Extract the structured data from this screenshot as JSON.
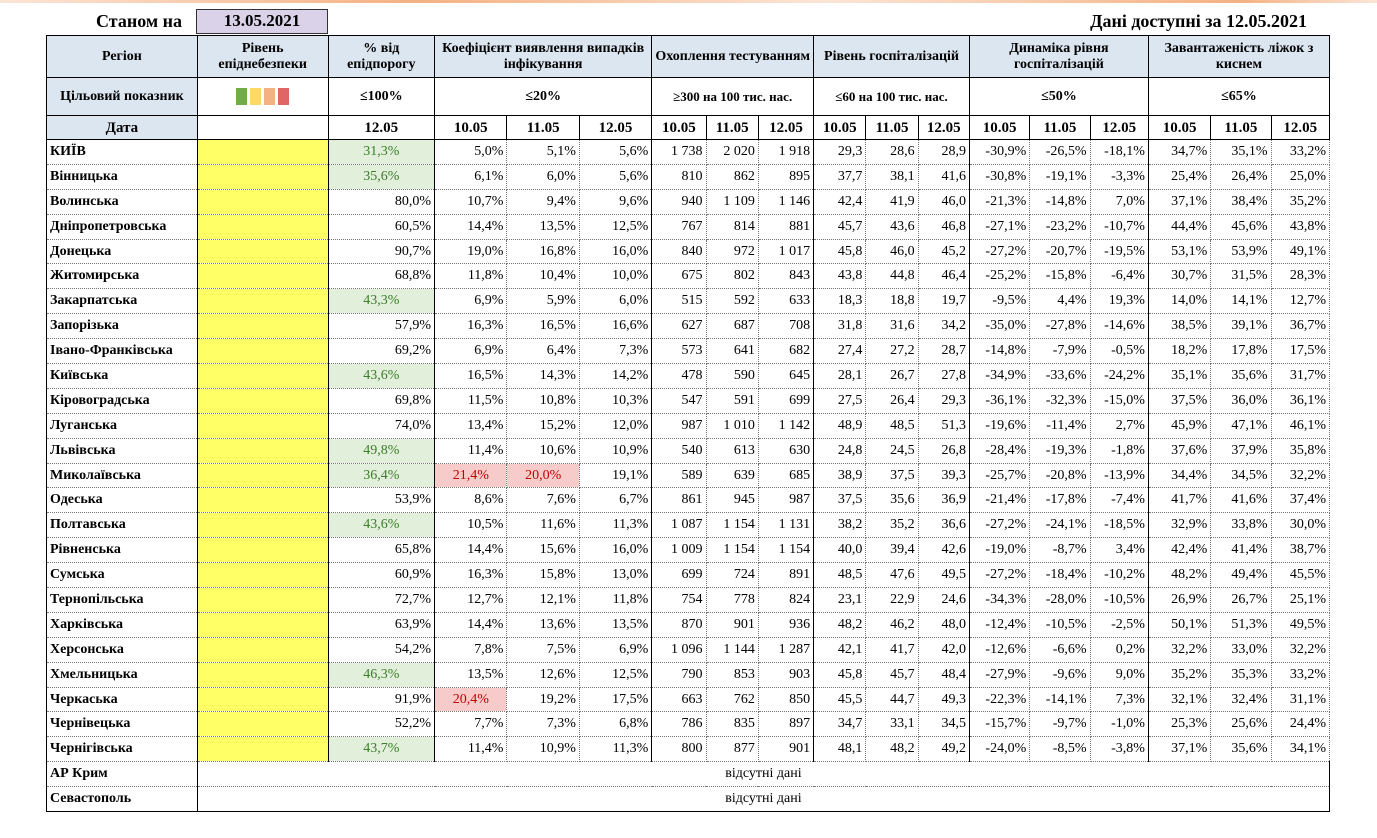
{
  "header": {
    "as_of_label": "Станом на",
    "as_of_date": "13.05.2021",
    "available_label": "Дані доступні за 12.05.2021"
  },
  "columns": {
    "region": "Регіон",
    "level": "Рівень епіднебезпеки",
    "threshold": "% від епідпорогу",
    "detection": "Коефіцієнт виявлення випадків інфікування",
    "testing": "Охоплення тестуванням",
    "hosp": "Рівень госпіталізацій",
    "hosp_dyn": "Динаміка рівня госпіталізацій",
    "oxygen": "Завантаженість ліжок з киснем"
  },
  "target": {
    "label": "Цільовий показник",
    "legend_colors": [
      "#70ad47",
      "#ffd966",
      "#f4b183",
      "#e06666"
    ],
    "threshold": "≤100%",
    "detection": "≤20%",
    "testing": "≥300 на 100 тис. нас.",
    "hosp": "≤60 на 100 тис. нас.",
    "hosp_dyn": "≤50%",
    "oxygen": "≤65%"
  },
  "dates": {
    "label": "Дата",
    "single": "12.05",
    "triple": [
      "10.05",
      "11.05",
      "12.05"
    ]
  },
  "colors": {
    "level_yellow": "#ffff66",
    "good_green": "#e2efda",
    "bad_red": "#f8cbcb"
  },
  "rows": [
    {
      "name": "КИЇВ",
      "thr": "31,3%",
      "thr_g": true,
      "det": [
        "5,0%",
        "5,1%",
        "5,6%"
      ],
      "tst": [
        "1 738",
        "2 020",
        "1 918"
      ],
      "hos": [
        "29,3",
        "28,6",
        "28,9"
      ],
      "dyn": [
        "-30,9%",
        "-26,5%",
        "-18,1%"
      ],
      "oxy": [
        "34,7%",
        "35,1%",
        "33,2%"
      ]
    },
    {
      "name": "Вінницька",
      "thr": "35,6%",
      "thr_g": true,
      "det": [
        "6,1%",
        "6,0%",
        "5,6%"
      ],
      "tst": [
        "810",
        "862",
        "895"
      ],
      "hos": [
        "37,7",
        "38,1",
        "41,6"
      ],
      "dyn": [
        "-30,8%",
        "-19,1%",
        "-3,3%"
      ],
      "oxy": [
        "25,4%",
        "26,4%",
        "25,0%"
      ]
    },
    {
      "name": "Волинська",
      "thr": "80,0%",
      "det": [
        "10,7%",
        "9,4%",
        "9,6%"
      ],
      "tst": [
        "940",
        "1 109",
        "1 146"
      ],
      "hos": [
        "42,4",
        "41,9",
        "46,0"
      ],
      "dyn": [
        "-21,3%",
        "-14,8%",
        "7,0%"
      ],
      "oxy": [
        "37,1%",
        "38,4%",
        "35,2%"
      ]
    },
    {
      "name": "Дніпропетровська",
      "thr": "60,5%",
      "det": [
        "14,4%",
        "13,5%",
        "12,5%"
      ],
      "tst": [
        "767",
        "814",
        "881"
      ],
      "hos": [
        "45,7",
        "43,6",
        "46,8"
      ],
      "dyn": [
        "-27,1%",
        "-23,2%",
        "-10,7%"
      ],
      "oxy": [
        "44,4%",
        "45,6%",
        "43,8%"
      ]
    },
    {
      "name": "Донецька",
      "thr": "90,7%",
      "det": [
        "19,0%",
        "16,8%",
        "16,0%"
      ],
      "tst": [
        "840",
        "972",
        "1 017"
      ],
      "hos": [
        "45,8",
        "46,0",
        "45,2"
      ],
      "dyn": [
        "-27,2%",
        "-20,7%",
        "-19,5%"
      ],
      "oxy": [
        "53,1%",
        "53,9%",
        "49,1%"
      ]
    },
    {
      "name": "Житомирська",
      "thr": "68,8%",
      "det": [
        "11,8%",
        "10,4%",
        "10,0%"
      ],
      "tst": [
        "675",
        "802",
        "843"
      ],
      "hos": [
        "43,8",
        "44,8",
        "46,4"
      ],
      "dyn": [
        "-25,2%",
        "-15,8%",
        "-6,4%"
      ],
      "oxy": [
        "30,7%",
        "31,5%",
        "28,3%"
      ]
    },
    {
      "name": "Закарпатська",
      "thr": "43,3%",
      "thr_g": true,
      "det": [
        "6,9%",
        "5,9%",
        "6,0%"
      ],
      "tst": [
        "515",
        "592",
        "633"
      ],
      "hos": [
        "18,3",
        "18,8",
        "19,7"
      ],
      "dyn": [
        "-9,5%",
        "4,4%",
        "19,3%"
      ],
      "oxy": [
        "14,0%",
        "14,1%",
        "12,7%"
      ]
    },
    {
      "name": "Запорізька",
      "thr": "57,9%",
      "det": [
        "16,3%",
        "16,5%",
        "16,6%"
      ],
      "tst": [
        "627",
        "687",
        "708"
      ],
      "hos": [
        "31,8",
        "31,6",
        "34,2"
      ],
      "dyn": [
        "-35,0%",
        "-27,8%",
        "-14,6%"
      ],
      "oxy": [
        "38,5%",
        "39,1%",
        "36,7%"
      ]
    },
    {
      "name": "Івано-Франківська",
      "thr": "69,2%",
      "det": [
        "6,9%",
        "6,4%",
        "7,3%"
      ],
      "tst": [
        "573",
        "641",
        "682"
      ],
      "hos": [
        "27,4",
        "27,2",
        "28,7"
      ],
      "dyn": [
        "-14,8%",
        "-7,9%",
        "-0,5%"
      ],
      "oxy": [
        "18,2%",
        "17,8%",
        "17,5%"
      ]
    },
    {
      "name": "Київська",
      "thr": "43,6%",
      "thr_g": true,
      "det": [
        "16,5%",
        "14,3%",
        "14,2%"
      ],
      "tst": [
        "478",
        "590",
        "645"
      ],
      "hos": [
        "28,1",
        "26,7",
        "27,8"
      ],
      "dyn": [
        "-34,9%",
        "-33,6%",
        "-24,2%"
      ],
      "oxy": [
        "35,1%",
        "35,6%",
        "31,7%"
      ]
    },
    {
      "name": "Кіровоградська",
      "thr": "69,8%",
      "det": [
        "11,5%",
        "10,8%",
        "10,3%"
      ],
      "tst": [
        "547",
        "591",
        "699"
      ],
      "hos": [
        "27,5",
        "26,4",
        "29,3"
      ],
      "dyn": [
        "-36,1%",
        "-32,3%",
        "-15,0%"
      ],
      "oxy": [
        "37,5%",
        "36,0%",
        "36,1%"
      ]
    },
    {
      "name": "Луганська",
      "thr": "74,0%",
      "det": [
        "13,4%",
        "15,2%",
        "12,0%"
      ],
      "tst": [
        "987",
        "1 010",
        "1 142"
      ],
      "hos": [
        "48,9",
        "48,5",
        "51,3"
      ],
      "dyn": [
        "-19,6%",
        "-11,4%",
        "2,7%"
      ],
      "oxy": [
        "45,9%",
        "47,1%",
        "46,1%"
      ]
    },
    {
      "name": "Львівська",
      "thr": "49,8%",
      "thr_g": true,
      "det": [
        "11,4%",
        "10,6%",
        "10,9%"
      ],
      "tst": [
        "540",
        "613",
        "630"
      ],
      "hos": [
        "24,8",
        "24,5",
        "26,8"
      ],
      "dyn": [
        "-28,4%",
        "-19,3%",
        "-1,8%"
      ],
      "oxy": [
        "37,6%",
        "37,9%",
        "35,8%"
      ]
    },
    {
      "name": "Миколаївська",
      "thr": "36,4%",
      "thr_g": true,
      "det": [
        "21,4%",
        "20,0%",
        "19,1%"
      ],
      "det_r": [
        true,
        true,
        false
      ],
      "tst": [
        "589",
        "639",
        "685"
      ],
      "hos": [
        "38,9",
        "37,5",
        "39,3"
      ],
      "dyn": [
        "-25,7%",
        "-20,8%",
        "-13,9%"
      ],
      "oxy": [
        "34,4%",
        "34,5%",
        "32,2%"
      ]
    },
    {
      "name": "Одеська",
      "thr": "53,9%",
      "det": [
        "8,6%",
        "7,6%",
        "6,7%"
      ],
      "tst": [
        "861",
        "945",
        "987"
      ],
      "hos": [
        "37,5",
        "35,6",
        "36,9"
      ],
      "dyn": [
        "-21,4%",
        "-17,8%",
        "-7,4%"
      ],
      "oxy": [
        "41,7%",
        "41,6%",
        "37,4%"
      ]
    },
    {
      "name": "Полтавська",
      "thr": "43,6%",
      "thr_g": true,
      "det": [
        "10,5%",
        "11,6%",
        "11,3%"
      ],
      "tst": [
        "1 087",
        "1 154",
        "1 131"
      ],
      "hos": [
        "38,2",
        "35,2",
        "36,6"
      ],
      "dyn": [
        "-27,2%",
        "-24,1%",
        "-18,5%"
      ],
      "oxy": [
        "32,9%",
        "33,8%",
        "30,0%"
      ]
    },
    {
      "name": "Рівненська",
      "thr": "65,8%",
      "det": [
        "14,4%",
        "15,6%",
        "16,0%"
      ],
      "tst": [
        "1 009",
        "1 154",
        "1 154"
      ],
      "hos": [
        "40,0",
        "39,4",
        "42,6"
      ],
      "dyn": [
        "-19,0%",
        "-8,7%",
        "3,4%"
      ],
      "oxy": [
        "42,4%",
        "41,4%",
        "38,7%"
      ]
    },
    {
      "name": "Сумська",
      "thr": "60,9%",
      "det": [
        "16,3%",
        "15,8%",
        "13,0%"
      ],
      "tst": [
        "699",
        "724",
        "891"
      ],
      "hos": [
        "48,5",
        "47,6",
        "49,5"
      ],
      "dyn": [
        "-27,2%",
        "-18,4%",
        "-10,2%"
      ],
      "oxy": [
        "48,2%",
        "49,4%",
        "45,5%"
      ]
    },
    {
      "name": "Тернопільська",
      "thr": "72,7%",
      "det": [
        "12,7%",
        "12,1%",
        "11,8%"
      ],
      "tst": [
        "754",
        "778",
        "824"
      ],
      "hos": [
        "23,1",
        "22,9",
        "24,6"
      ],
      "dyn": [
        "-34,3%",
        "-28,0%",
        "-10,5%"
      ],
      "oxy": [
        "26,9%",
        "26,7%",
        "25,1%"
      ]
    },
    {
      "name": "Харківська",
      "thr": "63,9%",
      "det": [
        "14,4%",
        "13,6%",
        "13,5%"
      ],
      "tst": [
        "870",
        "901",
        "936"
      ],
      "hos": [
        "48,2",
        "46,2",
        "48,0"
      ],
      "dyn": [
        "-12,4%",
        "-10,5%",
        "-2,5%"
      ],
      "oxy": [
        "50,1%",
        "51,3%",
        "49,5%"
      ]
    },
    {
      "name": "Херсонська",
      "thr": "54,2%",
      "det": [
        "7,8%",
        "7,5%",
        "6,9%"
      ],
      "tst": [
        "1 096",
        "1 144",
        "1 287"
      ],
      "hos": [
        "42,1",
        "41,7",
        "42,0"
      ],
      "dyn": [
        "-12,6%",
        "-6,6%",
        "0,2%"
      ],
      "oxy": [
        "32,2%",
        "33,0%",
        "32,2%"
      ]
    },
    {
      "name": "Хмельницька",
      "thr": "46,3%",
      "thr_g": true,
      "det": [
        "13,5%",
        "12,6%",
        "12,5%"
      ],
      "tst": [
        "790",
        "853",
        "903"
      ],
      "hos": [
        "45,8",
        "45,7",
        "48,4"
      ],
      "dyn": [
        "-27,9%",
        "-9,6%",
        "9,0%"
      ],
      "oxy": [
        "35,2%",
        "35,3%",
        "33,2%"
      ]
    },
    {
      "name": "Черкаська",
      "thr": "91,9%",
      "det": [
        "20,4%",
        "19,2%",
        "17,5%"
      ],
      "det_r": [
        true,
        false,
        false
      ],
      "tst": [
        "663",
        "762",
        "850"
      ],
      "hos": [
        "45,5",
        "44,7",
        "49,3"
      ],
      "dyn": [
        "-22,3%",
        "-14,1%",
        "7,3%"
      ],
      "oxy": [
        "32,1%",
        "32,4%",
        "31,1%"
      ]
    },
    {
      "name": "Чернівецька",
      "thr": "52,2%",
      "det": [
        "7,7%",
        "7,3%",
        "6,8%"
      ],
      "tst": [
        "786",
        "835",
        "897"
      ],
      "hos": [
        "34,7",
        "33,1",
        "34,5"
      ],
      "dyn": [
        "-15,7%",
        "-9,7%",
        "-1,0%"
      ],
      "oxy": [
        "25,3%",
        "25,6%",
        "24,4%"
      ]
    },
    {
      "name": "Чернігівська",
      "thr": "43,7%",
      "thr_g": true,
      "det": [
        "11,4%",
        "10,9%",
        "11,3%"
      ],
      "tst": [
        "800",
        "877",
        "901"
      ],
      "hos": [
        "48,1",
        "48,2",
        "49,2"
      ],
      "dyn": [
        "-24,0%",
        "-8,5%",
        "-3,8%"
      ],
      "oxy": [
        "37,1%",
        "35,6%",
        "34,1%"
      ]
    }
  ],
  "missing_rows": [
    {
      "name": "АР Крим",
      "note": "відсутні дані"
    },
    {
      "name": "Севастополь",
      "note": "відсутні дані"
    }
  ]
}
